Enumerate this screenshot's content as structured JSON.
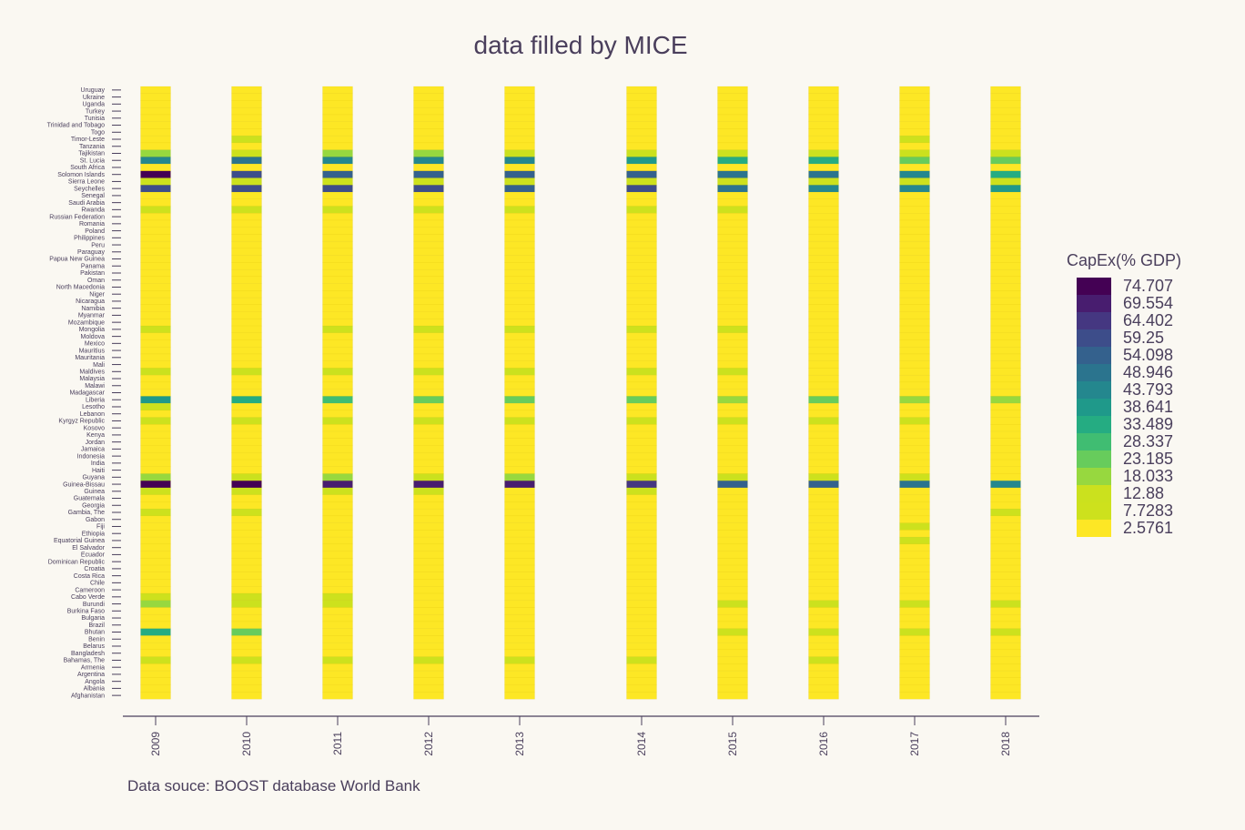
{
  "chart_data": {
    "type": "heatmap",
    "title": "data filled by MICE",
    "source_note": "Data souce: BOOST database World Bank",
    "x": [
      "2009",
      "2010",
      "2011",
      "2012",
      "2013",
      "2014",
      "2015",
      "2016",
      "2017",
      "2018"
    ],
    "y": [
      "Uruguay",
      "Ukraine",
      "Uganda",
      "Turkey",
      "Tunisia",
      "Trinidad and Tobago",
      "Togo",
      "Timor-Leste",
      "Tanzania",
      "Tajikistan",
      "St. Lucia",
      "South Africa",
      "Solomon Islands",
      "Sierra Leone",
      "Seychelles",
      "Senegal",
      "Saudi Arabia",
      "Rwanda",
      "Russian Federation",
      "Romania",
      "Poland",
      "Philippines",
      "Peru",
      "Paraguay",
      "Papua New Guinea",
      "Panama",
      "Pakistan",
      "Oman",
      "North Macedonia",
      "Niger",
      "Nicaragua",
      "Namibia",
      "Myanmar",
      "Mozambique",
      "Mongolia",
      "Moldova",
      "Mexico",
      "Mauritius",
      "Mauritania",
      "Mali",
      "Maldives",
      "Malaysia",
      "Malawi",
      "Madagascar",
      "Liberia",
      "Lesotho",
      "Lebanon",
      "Kyrgyz Republic",
      "Kosovo",
      "Kenya",
      "Jordan",
      "Jamaica",
      "Indonesia",
      "India",
      "Haiti",
      "Guyana",
      "Guinea-Bissau",
      "Guinea",
      "Guatemala",
      "Georgia",
      "Gambia, The",
      "Gabon",
      "Fiji",
      "Ethiopia",
      "Equatorial Guinea",
      "El Salvador",
      "Ecuador",
      "Dominican Republic",
      "Croatia",
      "Costa Rica",
      "Chile",
      "Cameroon",
      "Cabo Verde",
      "Burundi",
      "Burkina Faso",
      "Bulgaria",
      "Brazil",
      "Bhutan",
      "Benin",
      "Belarus",
      "Bangladesh",
      "Bahamas, The",
      "Armenia",
      "Argentina",
      "Angola",
      "Albania",
      "Afghanistan"
    ],
    "z_default": 2.5761,
    "z_values": {
      "Timor-Leste": [
        2.5761,
        12.88,
        2.5761,
        2.5761,
        2.5761,
        2.5761,
        2.5761,
        2.5761,
        7.7283,
        2.5761
      ],
      "Tajikistan": [
        18.033,
        7.7283,
        18.033,
        18.033,
        12.88,
        12.88,
        12.88,
        12.88,
        12.88,
        12.88
      ],
      "St. Lucia": [
        43.793,
        48.946,
        43.793,
        43.793,
        43.793,
        38.641,
        33.489,
        33.489,
        23.185,
        23.185
      ],
      "Solomon Islands": [
        74.707,
        59.25,
        54.098,
        54.098,
        54.098,
        54.098,
        48.946,
        48.946,
        43.793,
        33.489
      ],
      "Sierra Leone": [
        7.7283,
        12.88,
        7.7283,
        7.7283,
        7.7283,
        7.7283,
        7.7283,
        7.7283,
        7.7283,
        7.7283
      ],
      "Seychelles": [
        59.25,
        59.25,
        59.25,
        59.25,
        54.098,
        59.25,
        48.946,
        43.793,
        43.793,
        38.641
      ],
      "Rwanda": [
        7.7283,
        7.7283,
        7.7283,
        7.7283,
        7.7283,
        7.7283,
        7.7283,
        2.5761,
        2.5761,
        2.5761
      ],
      "Mongolia": [
        7.7283,
        2.5761,
        7.7283,
        7.7283,
        7.7283,
        7.7283,
        7.7283,
        2.5761,
        2.5761,
        2.5761
      ],
      "Maldives": [
        12.88,
        12.88,
        12.88,
        12.88,
        12.88,
        12.88,
        12.88,
        2.5761,
        2.5761,
        2.5761
      ],
      "Liberia": [
        38.641,
        33.489,
        28.337,
        23.185,
        23.185,
        23.185,
        18.033,
        23.185,
        18.033,
        18.033
      ],
      "Lesotho": [
        7.7283,
        2.5761,
        2.5761,
        2.5761,
        2.5761,
        2.5761,
        2.5761,
        2.5761,
        2.5761,
        2.5761
      ],
      "Kyrgyz Republic": [
        7.7283,
        7.7283,
        7.7283,
        7.7283,
        7.7283,
        7.7283,
        7.7283,
        7.7283,
        7.7283,
        2.5761
      ],
      "Guyana": [
        18.033,
        12.88,
        18.033,
        12.88,
        18.033,
        12.88,
        12.88,
        7.7283,
        7.7283,
        2.5761
      ],
      "Guinea-Bissau": [
        74.707,
        74.707,
        69.554,
        69.554,
        69.554,
        64.402,
        54.098,
        54.098,
        48.946,
        43.793
      ],
      "Guinea": [
        7.7283,
        7.7283,
        7.7283,
        7.7283,
        2.5761,
        7.7283,
        2.5761,
        2.5761,
        2.5761,
        2.5761
      ],
      "Gambia, The": [
        7.7283,
        7.7283,
        2.5761,
        2.5761,
        2.5761,
        2.5761,
        2.5761,
        2.5761,
        2.5761,
        7.7283
      ],
      "Fiji": [
        2.5761,
        2.5761,
        2.5761,
        2.5761,
        2.5761,
        2.5761,
        2.5761,
        2.5761,
        7.7283,
        2.5761
      ],
      "Equatorial Guinea": [
        2.5761,
        2.5761,
        2.5761,
        2.5761,
        2.5761,
        2.5761,
        2.5761,
        2.5761,
        7.7283,
        2.5761
      ],
      "Cabo Verde": [
        7.7283,
        7.7283,
        7.7283,
        2.5761,
        2.5761,
        2.5761,
        2.5761,
        2.5761,
        2.5761,
        2.5761
      ],
      "Burundi": [
        18.033,
        12.88,
        7.7283,
        2.5761,
        2.5761,
        2.5761,
        12.88,
        12.88,
        12.88,
        12.88
      ],
      "Bhutan": [
        33.489,
        23.185,
        2.5761,
        2.5761,
        2.5761,
        2.5761,
        7.7283,
        7.7283,
        12.88,
        7.7283
      ],
      "Bahamas, The": [
        7.7283,
        7.7283,
        7.7283,
        7.7283,
        7.7283,
        7.7283,
        2.5761,
        7.7283,
        2.5761,
        2.5761
      ],
      "Angola": [
        2.5761,
        2.5761,
        2.5761,
        2.5761,
        2.5761,
        2.5761,
        2.5761,
        2.5761,
        2.5761,
        2.5761
      ]
    },
    "colorbar": {
      "title": "CapEx(% GDP)",
      "ticks": [
        "74.707",
        "69.554",
        "64.402",
        "59.25",
        "54.098",
        "48.946",
        "43.793",
        "38.641",
        "33.489",
        "28.337",
        "23.185",
        "18.033",
        "12.88",
        "7.7283",
        "2.5761"
      ],
      "colors": [
        "#440154",
        "#481d6f",
        "#453781",
        "#3d4d8a",
        "#34618d",
        "#2b748e",
        "#24878e",
        "#1f998a",
        "#25ac82",
        "#40bd72",
        "#67cc5c",
        "#97d83f",
        "#cbe11e",
        "#cde11d",
        "#fde725"
      ]
    },
    "zrange": [
      2.5761,
      74.707
    ],
    "grid": false,
    "legend_position": "right"
  }
}
